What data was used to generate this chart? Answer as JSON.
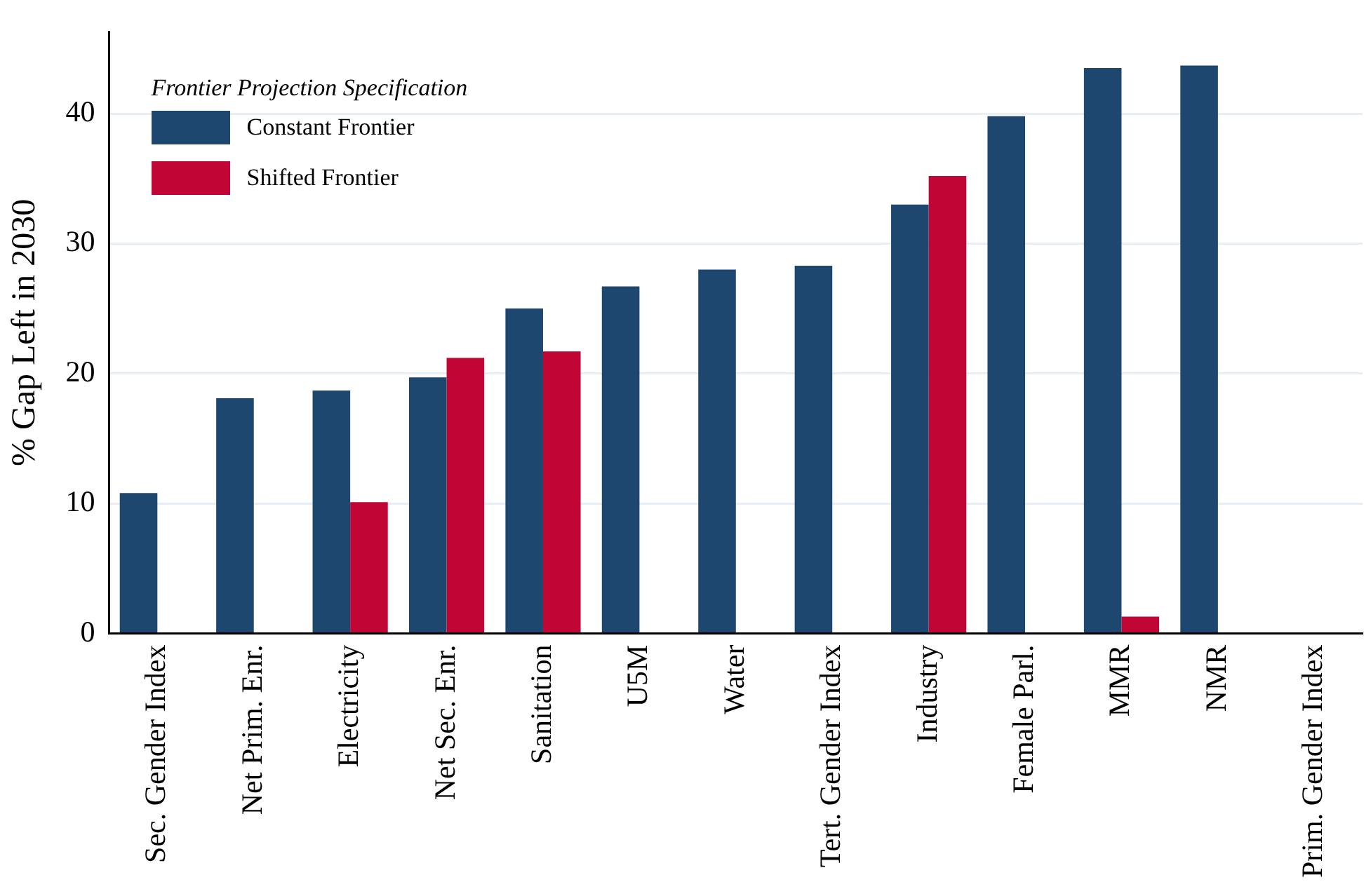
{
  "chart_data": {
    "type": "bar",
    "ylabel": "% Gap Left in 2030",
    "legend_title": "Frontier Projection Specification",
    "legend": "top left",
    "grid": "y",
    "categories": [
      "Sec. Gender Index",
      "Net Prim. Enr.",
      "Electricity",
      "Net Sec. Enr.",
      "Sanitation",
      "U5M",
      "Water",
      "Tert. Gender Index",
      "Industry",
      "Female Parl.",
      "MMR",
      "NMR",
      "Prim. Gender Index"
    ],
    "series": [
      {
        "name": "Constant Frontier",
        "color": "#1d476e",
        "values": [
          10.8,
          18.1,
          18.7,
          19.7,
          25.0,
          26.7,
          28.0,
          28.3,
          33.0,
          39.8,
          43.5,
          43.7,
          null
        ]
      },
      {
        "name": "Shifted Frontier",
        "color": "#c10534",
        "values": [
          null,
          null,
          10.1,
          21.2,
          21.7,
          null,
          null,
          null,
          35.2,
          null,
          1.3,
          null,
          null
        ]
      }
    ],
    "ylim": [
      0,
      46.3
    ],
    "yticks": [
      0,
      10,
      20,
      30,
      40
    ]
  }
}
